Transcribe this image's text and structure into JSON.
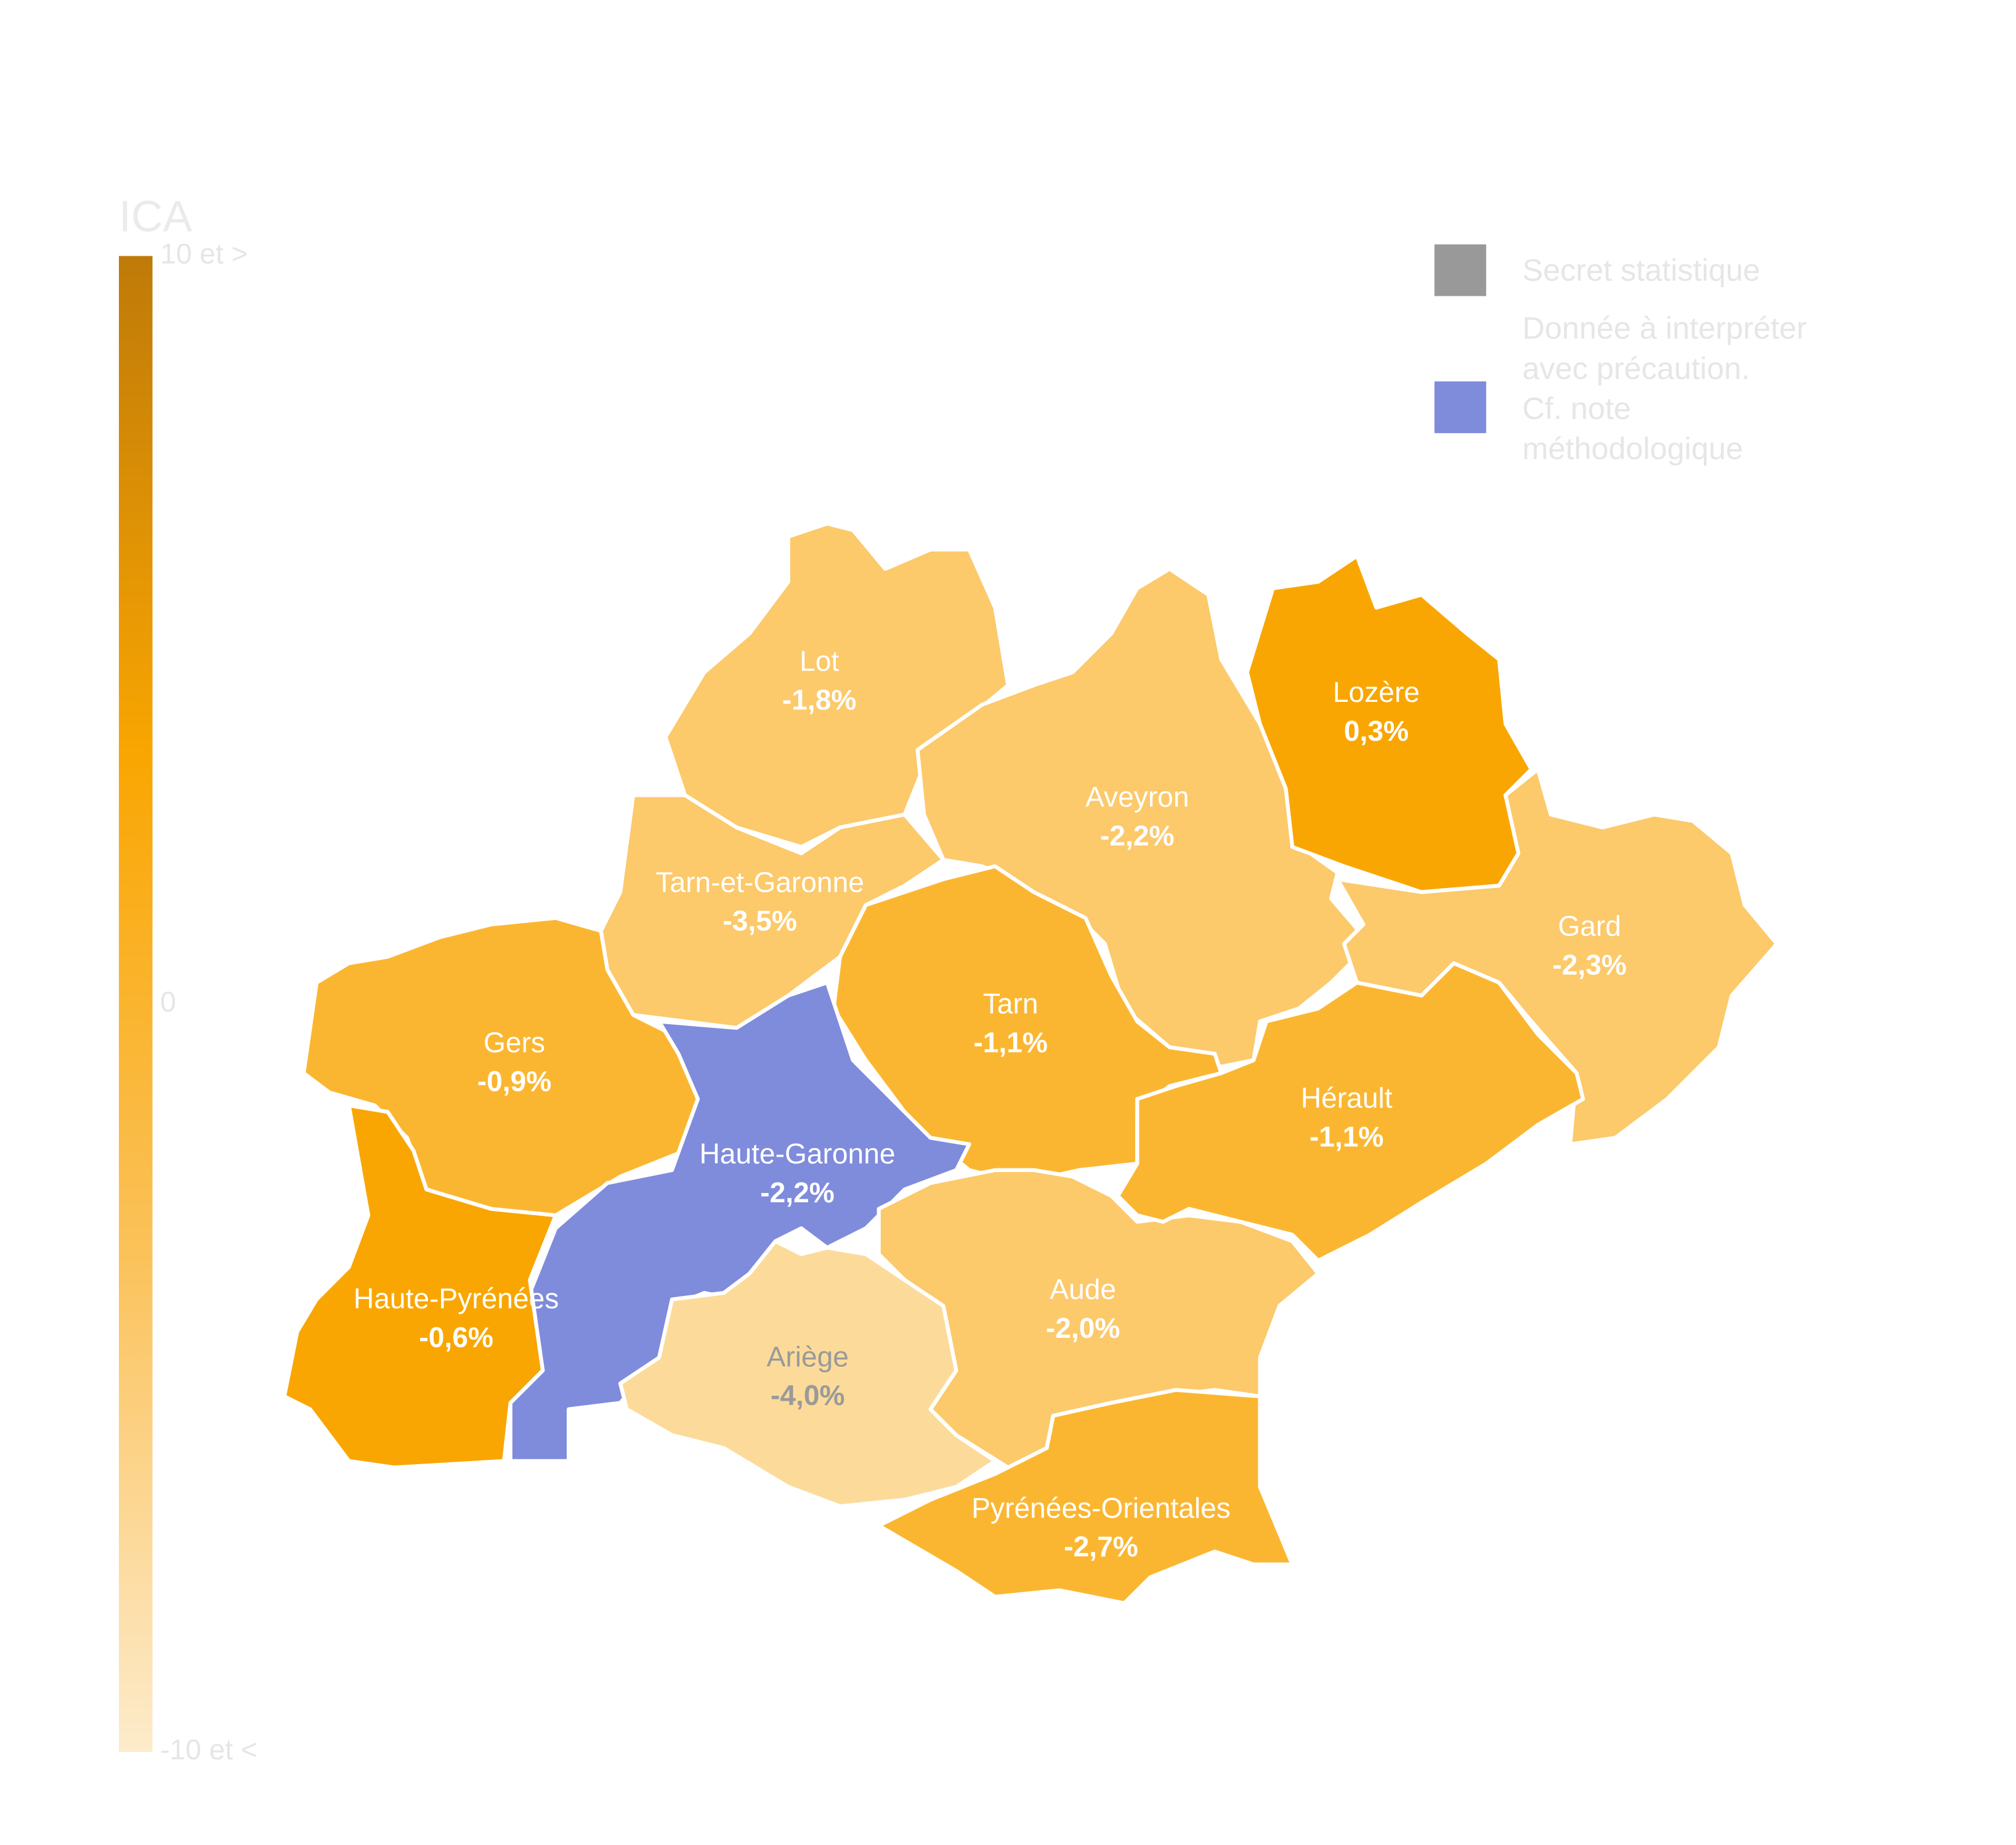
{
  "chart_data": {
    "type": "choropleth",
    "title": "ICA",
    "colorbar_ticks": [
      {
        "value": 10,
        "label": "10 et >"
      },
      0,
      {
        "value": -10,
        "label": "-10 et <"
      }
    ],
    "colorbar_lim": [
      10,
      -10
    ],
    "colorbar_colors": [
      "#bf7a08",
      "#f9a602",
      "#fbc25a",
      "#fdebcb"
    ],
    "legend": [
      {
        "name": "Secret statistique",
        "color": "#999999"
      },
      {
        "name": "Donnée à interpréter\navec précaution.\nCf. note\nméthodologique",
        "color": "#7f8bdb"
      }
    ],
    "regions": [
      {
        "name": "Lot",
        "value": -1.8,
        "value_label": "-1,8%",
        "color": "#fcc96b"
      },
      {
        "name": "Aveyron",
        "value": -2.2,
        "value_label": "-2,2%",
        "color": "#fcc96b"
      },
      {
        "name": "Lozère",
        "value": 0.3,
        "value_label": "0,3%",
        "color": "#f9a602"
      },
      {
        "name": "Gard",
        "value": -2.3,
        "value_label": "-2,3%",
        "color": "#fcc96b"
      },
      {
        "name": "Tarn-et-Garonne",
        "value": -3.5,
        "value_label": "-3,5%",
        "color": "#fcc96b"
      },
      {
        "name": "Tarn",
        "value": -1.1,
        "value_label": "-1,1%",
        "color": "#fbb631"
      },
      {
        "name": "Gers",
        "value": -0.9,
        "value_label": "-0,9%",
        "color": "#fbb631"
      },
      {
        "name": "Haute-Garonne",
        "value": -2.2,
        "value_label": "-2,2%",
        "color": "#7f8bdb"
      },
      {
        "name": "Haute-Pyrénées",
        "value": -0.6,
        "value_label": "-0,6%",
        "color": "#f9a602"
      },
      {
        "name": "Ariège",
        "value": -4.0,
        "value_label": "-4,0%",
        "color": "#fcdb9a"
      },
      {
        "name": "Aude",
        "value": -2.0,
        "value_label": "-2,0%",
        "color": "#fcc96b"
      },
      {
        "name": "Hérault",
        "value": -1.1,
        "value_label": "-1,1%",
        "color": "#fbb631"
      },
      {
        "name": "Pyrénées-Orientales",
        "value": -2.7,
        "value_label": "-2,7%",
        "color": "#fbb631"
      }
    ]
  }
}
